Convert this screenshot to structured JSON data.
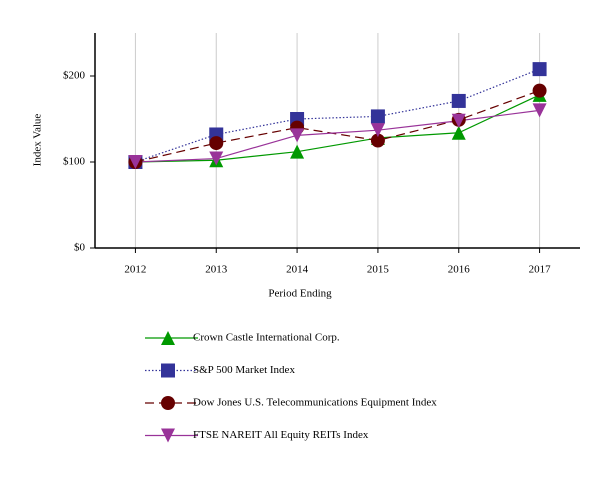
{
  "chart_data": {
    "type": "line",
    "xlabel": "Period Ending",
    "ylabel": "Index Value",
    "categories": [
      "2012",
      "2013",
      "2014",
      "2015",
      "2016",
      "2017"
    ],
    "ylim": [
      0,
      250
    ],
    "yticks": [
      {
        "value": 0,
        "label": "$0"
      },
      {
        "value": 100,
        "label": "$100"
      },
      {
        "value": 200,
        "label": "$200"
      }
    ],
    "grid": true,
    "series": [
      {
        "name": "Crown Castle International Corp.",
        "color": "#009900",
        "marker": "triangle-up",
        "linestyle": "solid",
        "values": [
          100,
          102,
          112,
          128,
          134,
          178
        ]
      },
      {
        "name": "S&P 500 Market Index",
        "color": "#333399",
        "marker": "square",
        "linestyle": "dotted",
        "values": [
          100,
          132,
          150,
          153,
          171,
          208
        ]
      },
      {
        "name": "Dow Jones U.S. Telecommunications Equipment Index",
        "color": "#660000",
        "marker": "circle",
        "linestyle": "dashed",
        "values": [
          100,
          122,
          140,
          125,
          149,
          183
        ]
      },
      {
        "name": "FTSE NAREIT All Equity REITs Index",
        "color": "#993399",
        "marker": "triangle-down",
        "linestyle": "solid",
        "values": [
          100,
          104,
          131,
          137,
          148,
          160
        ]
      }
    ]
  }
}
